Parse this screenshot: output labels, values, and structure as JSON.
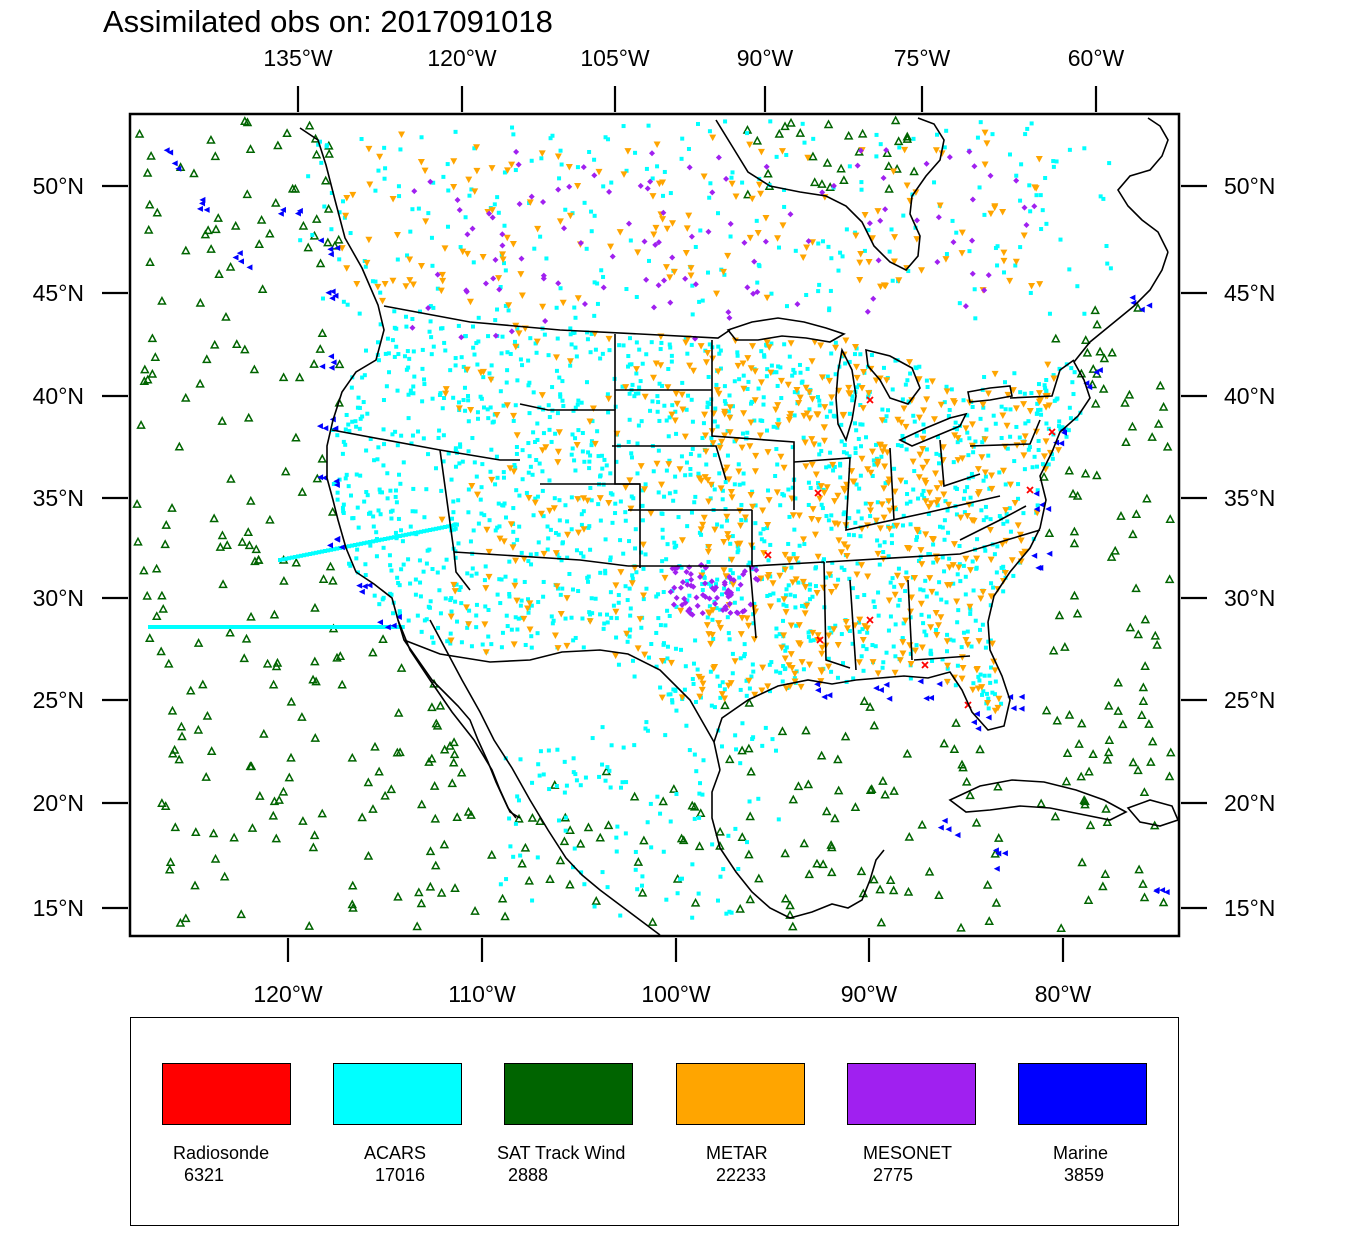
{
  "title": "Assimilated obs on: 2017091018",
  "top_lon_labels": [
    "135°W",
    "120°W",
    "105°W",
    "90°W",
    "75°W",
    "60°W"
  ],
  "bottom_lon_labels": [
    "120°W",
    "110°W",
    "100°W",
    "90°W",
    "80°W"
  ],
  "lat_labels": [
    "50°N",
    "45°N",
    "40°N",
    "35°N",
    "30°N",
    "25°N",
    "20°N",
    "15°N"
  ],
  "legend": [
    {
      "name": "Radiosonde",
      "count": "6321",
      "color": "#ff0000"
    },
    {
      "name": "ACARS",
      "count": "17016",
      "color": "#00ffff"
    },
    {
      "name": "SAT Track Wind",
      "count": "2888",
      "color": "#006400"
    },
    {
      "name": "METAR",
      "count": "22233",
      "color": "#ffa500"
    },
    {
      "name": "MESONET",
      "count": "2775",
      "color": "#a020f0"
    },
    {
      "name": "Marine",
      "count": "3859",
      "color": "#0000ff"
    }
  ]
}
